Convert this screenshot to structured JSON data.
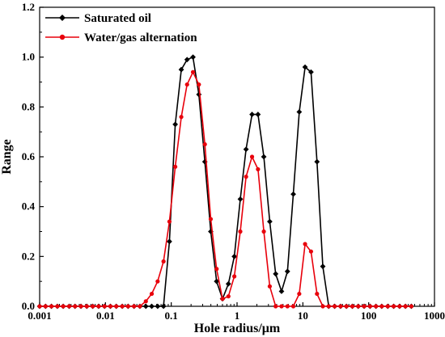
{
  "chart_data": {
    "type": "line",
    "title": "",
    "xlabel": "Hole radius/μm",
    "ylabel": "Range",
    "x_scale": "log",
    "xlim": [
      0.001,
      1000
    ],
    "ylim": [
      0,
      1.2
    ],
    "x_ticks": [
      0.001,
      0.01,
      0.1,
      1,
      10,
      100,
      1000
    ],
    "x_tick_labels": [
      "0.001",
      "0.01",
      "0.1",
      "1",
      "10",
      "100",
      "1000"
    ],
    "y_ticks": [
      0.0,
      0.2,
      0.4,
      0.6,
      0.8,
      1.0,
      1.2
    ],
    "y_tick_labels": [
      "0.0",
      "0.2",
      "0.4",
      "0.6",
      "0.8",
      "1.0",
      "1.2"
    ],
    "grid": false,
    "legend_position": "top-left",
    "series": [
      {
        "name": "Saturated oil",
        "color": "#000000",
        "marker": "diamond",
        "x": [
          0.001,
          0.00123,
          0.00151,
          0.00186,
          0.00228,
          0.00281,
          0.00345,
          0.00424,
          0.00521,
          0.00641,
          0.00788,
          0.00969,
          0.0119,
          0.0146,
          0.018,
          0.0221,
          0.0272,
          0.0334,
          0.0411,
          0.0505,
          0.0621,
          0.0763,
          0.0938,
          0.115,
          0.142,
          0.174,
          0.214,
          0.263,
          0.324,
          0.398,
          0.489,
          0.601,
          0.739,
          0.909,
          1.12,
          1.37,
          1.69,
          2.08,
          2.55,
          3.14,
          3.86,
          4.74,
          5.83,
          7.16,
          8.81,
          10.8,
          13.3,
          16.4,
          20.1,
          24.7,
          30.4,
          37.4,
          45.9,
          56.5,
          69.4,
          85.3,
          105,
          129,
          158,
          195,
          240,
          295,
          362,
          445
        ],
        "y": [
          0,
          0,
          0,
          0,
          0,
          0,
          0,
          0,
          0,
          0,
          0,
          0,
          0,
          0,
          0,
          0,
          0,
          0,
          0,
          0,
          0,
          0,
          0.26,
          0.73,
          0.95,
          0.99,
          1.0,
          0.85,
          0.58,
          0.3,
          0.1,
          0.03,
          0.09,
          0.2,
          0.43,
          0.63,
          0.77,
          0.77,
          0.6,
          0.34,
          0.13,
          0.06,
          0.14,
          0.45,
          0.78,
          0.96,
          0.94,
          0.58,
          0.16,
          0,
          0,
          0,
          0,
          0,
          0,
          0,
          0,
          0,
          0,
          0,
          0,
          0,
          0,
          0
        ]
      },
      {
        "name": "Water/gas alternation",
        "color": "#e8000b",
        "marker": "circle",
        "x": [
          0.001,
          0.00123,
          0.00151,
          0.00186,
          0.00228,
          0.00281,
          0.00345,
          0.00424,
          0.00521,
          0.00641,
          0.00788,
          0.00969,
          0.0119,
          0.0146,
          0.018,
          0.0221,
          0.0272,
          0.0334,
          0.0411,
          0.0505,
          0.0621,
          0.0763,
          0.0938,
          0.115,
          0.142,
          0.174,
          0.214,
          0.263,
          0.324,
          0.398,
          0.489,
          0.601,
          0.739,
          0.909,
          1.12,
          1.37,
          1.69,
          2.08,
          2.55,
          3.14,
          3.86,
          4.74,
          5.83,
          7.16,
          8.81,
          10.8,
          13.3,
          16.4,
          20.1,
          24.7,
          30.4,
          37.4,
          45.9,
          56.5,
          69.4,
          85.3,
          105,
          129,
          158,
          195,
          240,
          295,
          362,
          445
        ],
        "y": [
          0,
          0,
          0,
          0,
          0,
          0,
          0,
          0,
          0,
          0,
          0,
          0,
          0,
          0,
          0,
          0,
          0,
          0,
          0.02,
          0.05,
          0.1,
          0.18,
          0.34,
          0.56,
          0.76,
          0.89,
          0.94,
          0.89,
          0.65,
          0.35,
          0.15,
          0.03,
          0.04,
          0.12,
          0.3,
          0.52,
          0.6,
          0.55,
          0.3,
          0.08,
          0,
          0,
          0,
          0,
          0.05,
          0.25,
          0.22,
          0.05,
          0,
          0,
          0,
          0,
          0,
          0,
          0,
          0,
          0,
          0,
          0,
          0,
          0,
          0,
          0,
          0
        ]
      }
    ]
  }
}
